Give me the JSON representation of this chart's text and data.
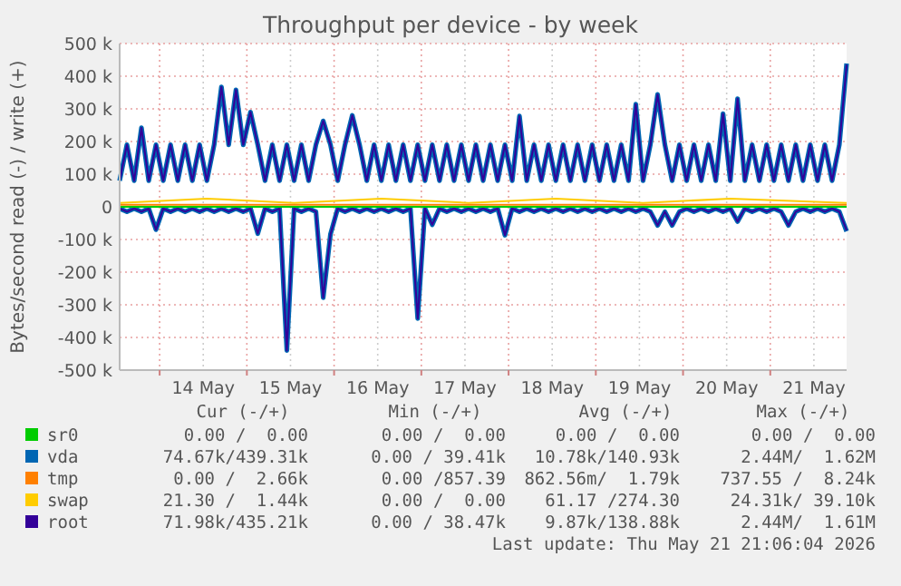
{
  "chart_data": {
    "type": "line",
    "title": "Throughput per device - by week",
    "ylabel": "Bytes/second read (-) / write (+)",
    "xlim": [
      "2026-05-13T13:00",
      "2026-05-21T21:00"
    ],
    "xticks": [
      {
        "value": "2026-05-14T00:00",
        "label": null
      },
      {
        "value": "2026-05-14T12:00",
        "label": "14 May"
      },
      {
        "value": "2026-05-15T00:00",
        "label": null
      },
      {
        "value": "2026-05-15T12:00",
        "label": "15 May"
      },
      {
        "value": "2026-05-16T00:00",
        "label": null
      },
      {
        "value": "2026-05-16T12:00",
        "label": "16 May"
      },
      {
        "value": "2026-05-17T00:00",
        "label": null
      },
      {
        "value": "2026-05-17T12:00",
        "label": "17 May"
      },
      {
        "value": "2026-05-18T00:00",
        "label": null
      },
      {
        "value": "2026-05-18T12:00",
        "label": "18 May"
      },
      {
        "value": "2026-05-19T00:00",
        "label": null
      },
      {
        "value": "2026-05-19T12:00",
        "label": "19 May"
      },
      {
        "value": "2026-05-20T00:00",
        "label": null
      },
      {
        "value": "2026-05-20T12:00",
        "label": "20 May"
      },
      {
        "value": "2026-05-21T00:00",
        "label": null
      },
      {
        "value": "2026-05-21T12:00",
        "label": "21 May"
      }
    ],
    "ylim": [
      -500,
      500
    ],
    "yticks": [
      {
        "value": -500,
        "label": "-500 k"
      },
      {
        "value": -400,
        "label": "-400 k"
      },
      {
        "value": -300,
        "label": "-300 k"
      },
      {
        "value": -200,
        "label": "-200 k"
      },
      {
        "value": -100,
        "label": "-100 k"
      },
      {
        "value": 0,
        "label": "0"
      },
      {
        "value": 100,
        "label": "100 k"
      },
      {
        "value": 200,
        "label": "200 k"
      },
      {
        "value": 300,
        "label": "300 k"
      },
      {
        "value": 400,
        "label": "400 k"
      },
      {
        "value": 500,
        "label": "500 k"
      }
    ],
    "grid": true,
    "legend": "bottom",
    "x": [
      "2026-05-13T13:00",
      "2026-05-13T15:00",
      "2026-05-13T17:00",
      "2026-05-13T19:00",
      "2026-05-13T21:00",
      "2026-05-13T23:00",
      "2026-05-14T01:00",
      "2026-05-14T03:00",
      "2026-05-14T05:00",
      "2026-05-14T07:00",
      "2026-05-14T09:00",
      "2026-05-14T11:00",
      "2026-05-14T13:00",
      "2026-05-14T15:00",
      "2026-05-14T17:00",
      "2026-05-14T19:00",
      "2026-05-14T21:00",
      "2026-05-14T23:00",
      "2026-05-15T01:00",
      "2026-05-15T03:00",
      "2026-05-15T05:00",
      "2026-05-15T07:00",
      "2026-05-15T09:00",
      "2026-05-15T11:00",
      "2026-05-15T13:00",
      "2026-05-15T15:00",
      "2026-05-15T17:00",
      "2026-05-15T19:00",
      "2026-05-15T21:00",
      "2026-05-15T23:00",
      "2026-05-16T01:00",
      "2026-05-16T03:00",
      "2026-05-16T05:00",
      "2026-05-16T07:00",
      "2026-05-16T09:00",
      "2026-05-16T11:00",
      "2026-05-16T13:00",
      "2026-05-16T15:00",
      "2026-05-16T17:00",
      "2026-05-16T19:00",
      "2026-05-16T21:00",
      "2026-05-16T23:00",
      "2026-05-17T01:00",
      "2026-05-17T03:00",
      "2026-05-17T05:00",
      "2026-05-17T07:00",
      "2026-05-17T09:00",
      "2026-05-17T11:00",
      "2026-05-17T13:00",
      "2026-05-17T15:00",
      "2026-05-17T17:00",
      "2026-05-17T19:00",
      "2026-05-17T21:00",
      "2026-05-17T23:00",
      "2026-05-18T01:00",
      "2026-05-18T03:00",
      "2026-05-18T05:00",
      "2026-05-18T07:00",
      "2026-05-18T09:00",
      "2026-05-18T11:00",
      "2026-05-18T13:00",
      "2026-05-18T15:00",
      "2026-05-18T17:00",
      "2026-05-18T19:00",
      "2026-05-18T21:00",
      "2026-05-18T23:00",
      "2026-05-19T01:00",
      "2026-05-19T03:00",
      "2026-05-19T05:00",
      "2026-05-19T07:00",
      "2026-05-19T09:00",
      "2026-05-19T11:00",
      "2026-05-19T13:00",
      "2026-05-19T15:00",
      "2026-05-19T17:00",
      "2026-05-19T19:00",
      "2026-05-19T21:00",
      "2026-05-19T23:00",
      "2026-05-20T01:00",
      "2026-05-20T03:00",
      "2026-05-20T05:00",
      "2026-05-20T07:00",
      "2026-05-20T09:00",
      "2026-05-20T11:00",
      "2026-05-20T13:00",
      "2026-05-20T15:00",
      "2026-05-20T17:00",
      "2026-05-20T19:00",
      "2026-05-20T21:00",
      "2026-05-20T23:00",
      "2026-05-21T01:00",
      "2026-05-21T03:00",
      "2026-05-21T05:00",
      "2026-05-21T07:00",
      "2026-05-21T09:00",
      "2026-05-21T11:00",
      "2026-05-21T13:00",
      "2026-05-21T15:00",
      "2026-05-21T17:00",
      "2026-05-21T19:00",
      "2026-05-21T21:00"
    ],
    "series": [
      {
        "name": "sr0",
        "color": "#00cc00",
        "x": [
          "2026-05-13T13:00",
          "2026-05-21T21:00"
        ],
        "values": [
          0,
          0
        ]
      },
      {
        "name": "vda",
        "color": "#0066b3",
        "values": [
          80,
          190,
          80,
          242,
          80,
          190,
          80,
          190,
          80,
          190,
          80,
          190,
          80,
          190,
          367,
          190,
          358,
          190,
          290,
          190,
          80,
          190,
          80,
          190,
          80,
          190,
          80,
          190,
          263,
          190,
          80,
          190,
          280,
          190,
          80,
          190,
          80,
          190,
          80,
          190,
          80,
          190,
          80,
          190,
          80,
          190,
          80,
          190,
          80,
          190,
          80,
          190,
          80,
          190,
          80,
          278,
          80,
          190,
          80,
          190,
          80,
          190,
          80,
          190,
          80,
          190,
          80,
          190,
          80,
          190,
          80,
          314,
          80,
          190,
          344,
          190,
          80,
          190,
          80,
          190,
          80,
          190,
          80,
          285,
          80,
          331,
          80,
          190,
          80,
          190,
          80,
          190,
          80,
          190,
          80,
          190,
          80,
          190,
          80,
          190,
          439
        ]
      },
      {
        "color": "#0066b3",
        "values": [
          -5,
          -15,
          -5,
          -15,
          -5,
          -70,
          -5,
          -15,
          -5,
          -15,
          -5,
          -15,
          -5,
          -15,
          -5,
          -15,
          -5,
          -15,
          -5,
          -82,
          -5,
          -15,
          -5,
          -440,
          -5,
          -15,
          -5,
          -15,
          -278,
          -84,
          -5,
          -15,
          -5,
          -15,
          -5,
          -15,
          -5,
          -15,
          -5,
          -15,
          -5,
          -342,
          -5,
          -55,
          -5,
          -15,
          -5,
          -15,
          -5,
          -15,
          -5,
          -15,
          -5,
          -87,
          -5,
          -15,
          -5,
          -15,
          -5,
          -15,
          -5,
          -15,
          -5,
          -15,
          -5,
          -15,
          -5,
          -15,
          -5,
          -15,
          -5,
          -15,
          -5,
          -15,
          -57,
          -15,
          -57,
          -15,
          -5,
          -15,
          -5,
          -15,
          -5,
          -15,
          -5,
          -45,
          -5,
          -15,
          -5,
          -15,
          -5,
          -15,
          -57,
          -15,
          -5,
          -15,
          -5,
          -15,
          -5,
          -15,
          -75
        ]
      },
      {
        "name": "tmp",
        "color": "#ff8000",
        "x": [
          "2026-05-13T13:00",
          "2026-05-15T13:00",
          "2026-05-17T13:00",
          "2026-05-19T13:00",
          "2026-05-21T21:00"
        ],
        "values": [
          6,
          6,
          6,
          6,
          6
        ]
      },
      {
        "name": "swap",
        "color": "#ffcc00",
        "x": [
          "2026-05-13T13:00",
          "2026-05-14T13:00",
          "2026-05-15T13:00",
          "2026-05-16T13:00",
          "2026-05-17T13:00",
          "2026-05-18T13:00",
          "2026-05-19T13:00",
          "2026-05-20T13:00",
          "2026-05-21T21:00"
        ],
        "values": [
          12,
          25,
          12,
          25,
          12,
          25,
          12,
          25,
          12
        ]
      },
      {
        "name": "root",
        "color": "#330099",
        "values": [
          80,
          190,
          80,
          242,
          80,
          190,
          80,
          190,
          80,
          190,
          80,
          190,
          80,
          190,
          367,
          190,
          358,
          190,
          290,
          190,
          80,
          190,
          80,
          190,
          80,
          190,
          80,
          190,
          263,
          190,
          80,
          190,
          280,
          190,
          80,
          190,
          80,
          190,
          80,
          190,
          80,
          190,
          80,
          190,
          80,
          190,
          80,
          190,
          80,
          190,
          80,
          190,
          80,
          190,
          80,
          278,
          80,
          190,
          80,
          190,
          80,
          190,
          80,
          190,
          80,
          190,
          80,
          190,
          80,
          190,
          80,
          314,
          80,
          190,
          344,
          190,
          80,
          190,
          80,
          190,
          80,
          190,
          80,
          285,
          80,
          331,
          80,
          190,
          80,
          190,
          80,
          190,
          80,
          190,
          80,
          190,
          80,
          190,
          80,
          190,
          435
        ]
      },
      {
        "color": "#330099",
        "values": [
          -5,
          -15,
          -5,
          -15,
          -5,
          -70,
          -5,
          -15,
          -5,
          -15,
          -5,
          -15,
          -5,
          -15,
          -5,
          -15,
          -5,
          -15,
          -5,
          -82,
          -5,
          -15,
          -5,
          -440,
          -5,
          -15,
          -5,
          -15,
          -278,
          -84,
          -5,
          -15,
          -5,
          -15,
          -5,
          -15,
          -5,
          -15,
          -5,
          -15,
          -5,
          -342,
          -5,
          -55,
          -5,
          -15,
          -5,
          -15,
          -5,
          -15,
          -5,
          -15,
          -5,
          -87,
          -5,
          -15,
          -5,
          -15,
          -5,
          -15,
          -5,
          -15,
          -5,
          -15,
          -5,
          -15,
          -5,
          -15,
          -5,
          -15,
          -5,
          -15,
          -5,
          -15,
          -57,
          -15,
          -57,
          -15,
          -5,
          -15,
          -5,
          -15,
          -5,
          -15,
          -5,
          -45,
          -5,
          -15,
          -5,
          -15,
          -5,
          -15,
          -57,
          -15,
          -5,
          -15,
          -5,
          -15,
          -5,
          -15,
          -72
        ]
      }
    ],
    "annotations": [
      "Cur (-/+)",
      "Min (-/+)",
      "Avg (-/+)",
      "Max (-/+)",
      "0.00 /  0.00",
      "0.00 /  0.00",
      "0.00 /  0.00",
      "0.00 /  0.00",
      "74.67k/439.31k",
      "0.00 / 39.41k",
      "10.78k/140.93k",
      "2.44M/  1.62M",
      "0.00 /  2.66k",
      "0.00 /857.39",
      "862.56m/  1.79k",
      "737.55 /  8.24k",
      "21.30 /  1.44k",
      "0.00 /  0.00",
      "61.17 /274.30",
      "24.31k/ 39.10k",
      "71.98k/435.21k",
      "0.00 / 38.47k",
      "9.87k/138.88k",
      "2.44M/  1.61M",
      "Last update: Thu May 21 21:06:04 2026"
    ]
  }
}
